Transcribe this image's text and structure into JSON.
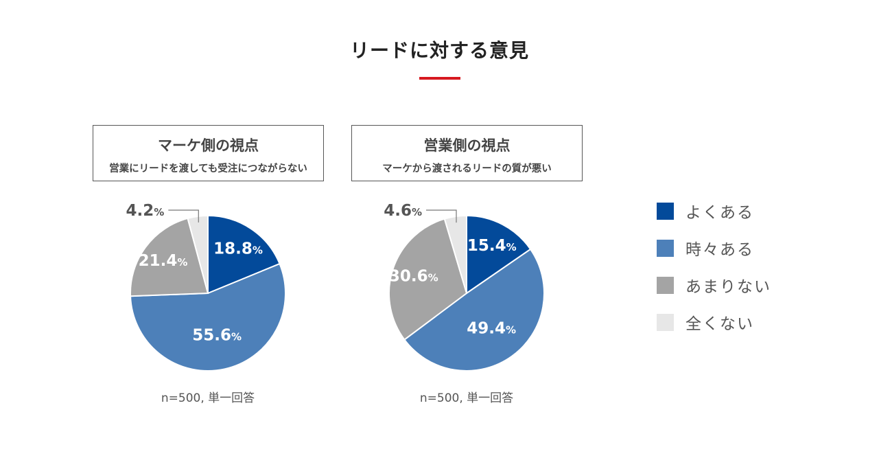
{
  "title": "リードに対する意見",
  "colors": {
    "accent": "#d71920",
    "frequent": "#034a9a",
    "sometimes": "#4d80b9",
    "rarely": "#a4a4a4",
    "never": "#e7e7e7"
  },
  "legend": [
    {
      "label": "よくある",
      "color": "#034a9a"
    },
    {
      "label": "時々ある",
      "color": "#4d80b9"
    },
    {
      "label": "あまりない",
      "color": "#a4a4a4"
    },
    {
      "label": "全くない",
      "color": "#e7e7e7"
    }
  ],
  "chart_data": [
    {
      "type": "pie",
      "title": "マーケ側の視点",
      "subtitle": "営業にリードを渡しても受注につながらない",
      "categories": [
        "よくある",
        "時々ある",
        "あまりない",
        "全くない"
      ],
      "values": [
        18.8,
        55.6,
        21.4,
        4.2
      ],
      "labels": [
        "18.8",
        "55.6",
        "21.4",
        "4.2"
      ],
      "unit": "%",
      "note": "n=500, 単一回答"
    },
    {
      "type": "pie",
      "title": "営業側の視点",
      "subtitle": "マーケから渡されるリードの質が悪い",
      "categories": [
        "よくある",
        "時々ある",
        "あまりない",
        "全くない"
      ],
      "values": [
        15.4,
        49.4,
        30.6,
        4.6
      ],
      "labels": [
        "15.4",
        "49.4",
        "30.6",
        "4.6"
      ],
      "unit": "%",
      "note": "n=500, 単一回答"
    }
  ]
}
